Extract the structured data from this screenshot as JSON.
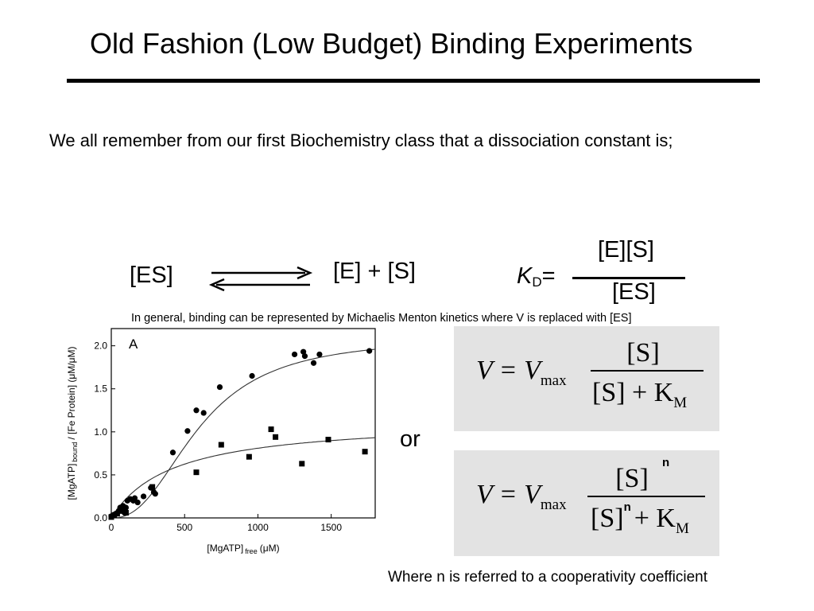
{
  "slide": {
    "title": "Old Fashion (Low Budget) Binding Experiments",
    "intro": "We all remember from our first Biochemistry class that a dissociation constant is;",
    "reaction": {
      "left": "[ES]",
      "right": "[E] + [S]"
    },
    "kd": {
      "symbol": "K",
      "subscript": "D",
      "equals": "=",
      "numerator": "[E][S]",
      "denominator": "[ES]"
    },
    "general_note": "In general, binding can be represented by Michaelis Menton kinetics where V is replaced with [ES]",
    "or_label": "or",
    "footnote": "Where n is referred to a cooperativity coefficient"
  },
  "equations": {
    "michaelis": {
      "lhs": "V = V",
      "vmax_sub": "max",
      "num": "[S]",
      "den_a": "[S] + K",
      "den_sub": "M"
    },
    "hill": {
      "lhs": "V = V",
      "vmax_sub": "max",
      "num": "[S]",
      "num_sup": "n",
      "den_a": "[S]",
      "den_sup": "n",
      "den_b": "+ K",
      "den_sub": "M"
    }
  },
  "chart_data": {
    "type": "scatter",
    "panel_label": "A",
    "xlabel": "[MgATP]",
    "xlabel_sub": "free",
    "xlabel_unit": "(μM)",
    "ylabel": "[MgATP]",
    "ylabel_sub": "bound",
    "ylabel_rest": "/ [Fe Protein] (μM/μM)",
    "xlim": [
      0,
      1800
    ],
    "ylim": [
      0,
      2.2
    ],
    "xticks": [
      "0",
      "500",
      "1000",
      "1500"
    ],
    "yticks": [
      "0.0",
      "0.5",
      "1.0",
      "1.5",
      "2.0"
    ],
    "series": [
      {
        "marker": "circle",
        "points": [
          [
            0,
            0.02
          ],
          [
            20,
            0.04
          ],
          [
            40,
            0.05
          ],
          [
            50,
            0.08
          ],
          [
            60,
            0.12
          ],
          [
            70,
            0.1
          ],
          [
            80,
            0.14
          ],
          [
            90,
            0.06
          ],
          [
            100,
            0.12
          ],
          [
            110,
            0.2
          ],
          [
            130,
            0.22
          ],
          [
            150,
            0.2
          ],
          [
            160,
            0.23
          ],
          [
            180,
            0.18
          ],
          [
            220,
            0.25
          ],
          [
            270,
            0.35
          ],
          [
            290,
            0.3
          ],
          [
            300,
            0.28
          ],
          [
            420,
            0.76
          ],
          [
            520,
            1.01
          ],
          [
            580,
            1.25
          ],
          [
            630,
            1.22
          ],
          [
            740,
            1.52
          ],
          [
            960,
            1.65
          ],
          [
            1250,
            1.9
          ],
          [
            1310,
            1.93
          ],
          [
            1320,
            1.88
          ],
          [
            1380,
            1.8
          ],
          [
            1420,
            1.9
          ],
          [
            1760,
            1.94
          ]
        ]
      },
      {
        "marker": "square",
        "points": [
          [
            0,
            0.01
          ],
          [
            20,
            0.03
          ],
          [
            40,
            0.05
          ],
          [
            60,
            0.08
          ],
          [
            80,
            0.1
          ],
          [
            100,
            0.06
          ],
          [
            280,
            0.36
          ],
          [
            580,
            0.53
          ],
          [
            750,
            0.85
          ],
          [
            940,
            0.71
          ],
          [
            1090,
            1.03
          ],
          [
            1120,
            0.94
          ],
          [
            1300,
            0.63
          ],
          [
            1480,
            0.91
          ],
          [
            1730,
            0.77
          ]
        ]
      }
    ],
    "fits": [
      {
        "marker": "circle",
        "model": "hill",
        "vmax": 2.1,
        "k": 600,
        "n": 2.4
      },
      {
        "marker": "square",
        "model": "hyperbolic",
        "vmax": 1.15,
        "k": 420
      }
    ]
  }
}
